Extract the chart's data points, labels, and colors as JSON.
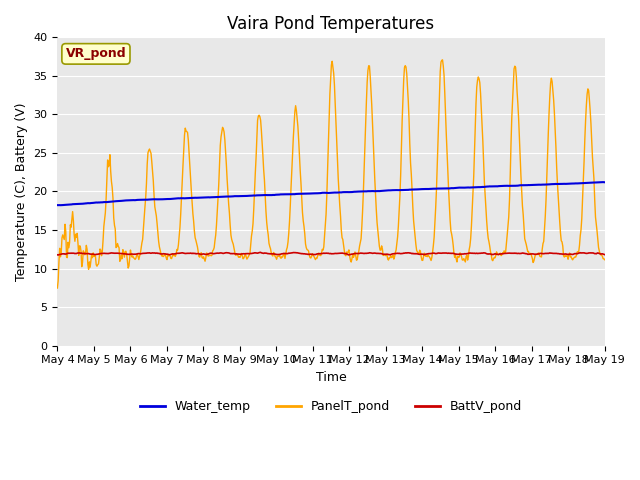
{
  "title": "Vaira Pond Temperatures",
  "xlabel": "Time",
  "ylabel": "Temperature (C), Battery (V)",
  "ylim": [
    0,
    40
  ],
  "yticks": [
    0,
    5,
    10,
    15,
    20,
    25,
    30,
    35,
    40
  ],
  "xtick_labels": [
    "May 4",
    "May 5",
    "May 6",
    "May 7",
    "May 8",
    "May 9",
    "May 10",
    "May 11",
    "May 12",
    "May 13",
    "May 14",
    "May 15",
    "May 16",
    "May 17",
    "May 18",
    "May 19"
  ],
  "water_temp_color": "#0000dd",
  "panel_color": "#FFA500",
  "batt_color": "#cc0000",
  "bg_color": "#e8e8e8",
  "annotation_text": "VR_pond",
  "annotation_bg": "#ffffcc",
  "annotation_edge": "#999900",
  "legend_labels": [
    "Water_temp",
    "PanelT_pond",
    "BattV_pond"
  ],
  "title_fontsize": 12,
  "axis_fontsize": 9,
  "tick_fontsize": 8
}
